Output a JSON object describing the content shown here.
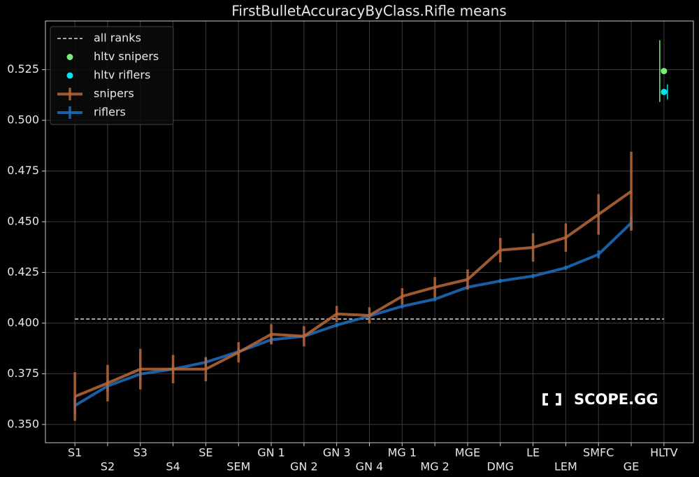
{
  "chart_data": {
    "type": "line",
    "title": "FirstBulletAccuracyByClass.Rifle means",
    "watermark": "SCOPE.GG",
    "categories": [
      "S1",
      "S2",
      "S3",
      "S4",
      "SE",
      "SEM",
      "GN 1",
      "GN 2",
      "GN 3",
      "GN 4",
      "MG 1",
      "MG 2",
      "MGE",
      "DMG",
      "LE",
      "LEM",
      "SMFC",
      "GE",
      "HLTV"
    ],
    "ylim": [
      0.341,
      0.549
    ],
    "yticks": [
      {
        "value": 0.35,
        "label": "0.350"
      },
      0.375,
      {
        "value": 0.4,
        "label": "0.400"
      },
      0.425,
      {
        "value": 0.45,
        "label": "0.450"
      },
      0.475,
      {
        "value": 0.5,
        "label": "0.500"
      },
      0.525
    ],
    "grid": true,
    "legend": "upper left",
    "reference": {
      "name": "all ranks",
      "value": 0.402,
      "color": "#dddddd"
    },
    "series": [
      {
        "name": "hltv snipers",
        "kind": "point",
        "color": "#77ee77",
        "values": [
          null,
          null,
          null,
          null,
          null,
          null,
          null,
          null,
          null,
          null,
          null,
          null,
          null,
          null,
          null,
          null,
          null,
          null,
          0.5243
        ],
        "errors": [
          null,
          null,
          null,
          null,
          null,
          null,
          null,
          null,
          null,
          null,
          null,
          null,
          null,
          null,
          null,
          null,
          null,
          null,
          0.0152
        ]
      },
      {
        "name": "hltv riflers",
        "kind": "point",
        "color": "#00e5ee",
        "values": [
          null,
          null,
          null,
          null,
          null,
          null,
          null,
          null,
          null,
          null,
          null,
          null,
          null,
          null,
          null,
          null,
          null,
          null,
          0.514
        ],
        "errors": [
          null,
          null,
          null,
          null,
          null,
          null,
          null,
          null,
          null,
          null,
          null,
          null,
          null,
          null,
          null,
          null,
          null,
          null,
          0.0037
        ]
      },
      {
        "name": "snipers",
        "kind": "line",
        "color": "#b8683a",
        "values": [
          0.3638,
          0.3704,
          0.3773,
          0.3773,
          0.3773,
          0.3856,
          0.3945,
          0.3935,
          0.4045,
          0.4038,
          0.4132,
          0.4177,
          0.4215,
          0.436,
          0.4373,
          0.4422,
          0.4536,
          0.465,
          null
        ],
        "errors": [
          0.012,
          0.009,
          0.01,
          0.007,
          0.006,
          0.005,
          0.005,
          0.005,
          0.004,
          0.004,
          0.004,
          0.005,
          0.005,
          0.006,
          0.007,
          0.007,
          0.01,
          0.0195,
          null
        ]
      },
      {
        "name": "riflers",
        "kind": "line",
        "color": "#1f6fc0",
        "values": [
          0.3593,
          0.369,
          0.3749,
          0.3773,
          0.3807,
          0.3859,
          0.3918,
          0.3935,
          0.399,
          0.4035,
          0.4083,
          0.4118,
          0.4177,
          0.4208,
          0.4232,
          0.4273,
          0.4339,
          0.4494,
          null
        ],
        "errors": [
          0.004,
          0.003,
          0.003,
          0.002,
          0.002,
          0.002,
          0.002,
          0.001,
          0.001,
          0.001,
          0.001,
          0.001,
          0.001,
          0.001,
          0.001,
          0.001,
          0.002,
          0.003,
          null
        ]
      }
    ]
  }
}
